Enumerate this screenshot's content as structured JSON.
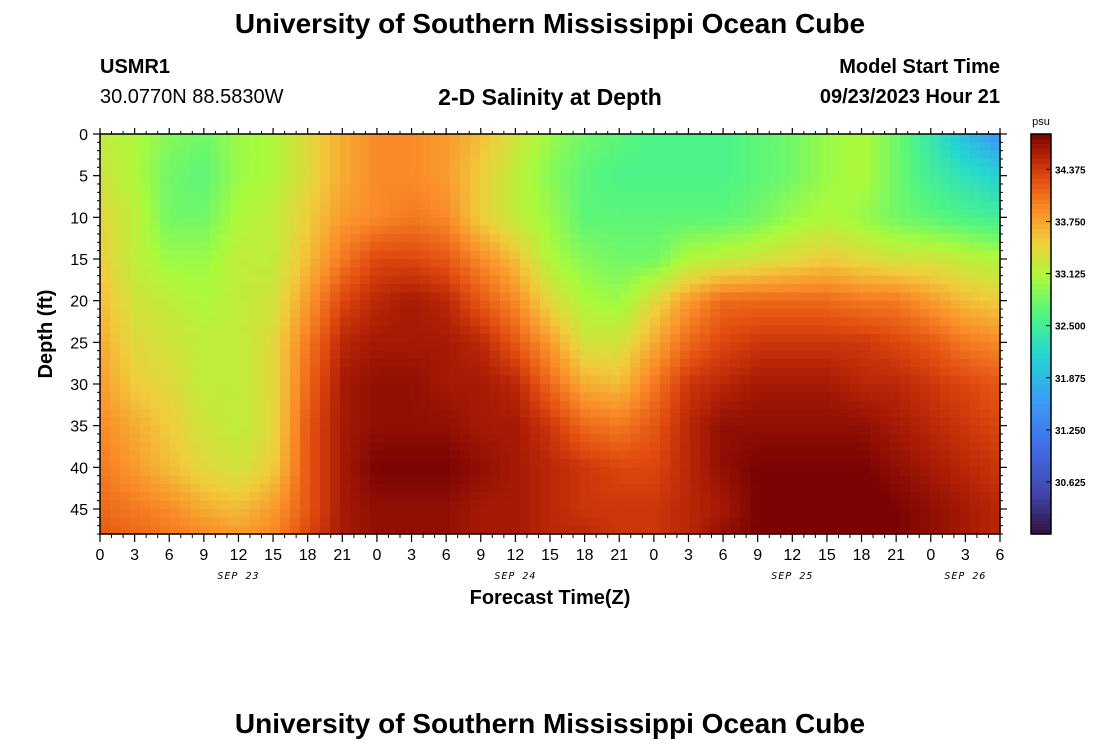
{
  "header": {
    "title": "University of Southern Mississippi Ocean Cube",
    "station_id": "USMR1",
    "coordinates": "30.0770N  88.5830W",
    "subtitle": "2-D Salinity at Depth",
    "model_start_label": "Model Start Time",
    "model_start_value": "09/23/2023 Hour 21"
  },
  "footer": {
    "title": "University of Southern Mississippi Ocean Cube"
  },
  "chart_data": {
    "type": "heatmap",
    "title": "2-D Salinity at Depth",
    "xlabel": "Forecast Time(Z)",
    "ylabel": "Depth (ft)",
    "x_hours_range": [
      0,
      78
    ],
    "x_tick_labels": [
      "0",
      "3",
      "6",
      "9",
      "12",
      "15",
      "18",
      "21",
      "0",
      "3",
      "6",
      "9",
      "12",
      "15",
      "18",
      "21",
      "0",
      "3",
      "6",
      "9",
      "12",
      "15",
      "18",
      "21",
      "0",
      "3",
      "6"
    ],
    "date_labels": [
      {
        "label": "SEP 23",
        "hour": 12
      },
      {
        "label": "SEP 24",
        "hour": 36
      },
      {
        "label": "SEP 25",
        "hour": 60
      },
      {
        "label": "SEP 26",
        "hour": 75
      }
    ],
    "y_range": [
      0,
      48
    ],
    "y_ticks": [
      0,
      5,
      10,
      15,
      20,
      25,
      30,
      35,
      40,
      45
    ],
    "colorbar": {
      "unit": "psu",
      "min": 30.0,
      "max": 34.8,
      "ticks": [
        "34.375",
        "33.750",
        "33.125",
        "32.500",
        "31.875",
        "31.250",
        "30.625"
      ]
    },
    "salinity_grid": {
      "description": "Approximate salinity (psu) sampled every 3 forecast hours (columns, hour 0..78) at depths 0,5,...,45,48 ft (rows).",
      "depths_ft": [
        0,
        5,
        10,
        15,
        20,
        25,
        30,
        35,
        40,
        45,
        48
      ],
      "rows": [
        [
          33.2,
          33.1,
          32.9,
          32.8,
          33.0,
          33.1,
          33.4,
          33.7,
          33.9,
          33.9,
          33.8,
          33.6,
          33.3,
          33.0,
          32.8,
          32.7,
          32.6,
          32.6,
          32.6,
          32.7,
          32.8,
          33.0,
          33.1,
          32.8,
          32.4,
          31.9,
          31.5
        ],
        [
          33.3,
          33.1,
          32.8,
          32.7,
          33.0,
          33.1,
          33.4,
          33.7,
          33.9,
          33.9,
          33.8,
          33.5,
          33.2,
          32.9,
          32.7,
          32.6,
          32.6,
          32.6,
          32.6,
          32.7,
          32.8,
          33.0,
          33.1,
          32.8,
          32.5,
          32.3,
          32.1
        ],
        [
          33.4,
          33.2,
          32.8,
          32.8,
          33.1,
          33.2,
          33.5,
          33.8,
          33.9,
          34.0,
          33.9,
          33.5,
          33.2,
          33.0,
          32.7,
          32.7,
          32.7,
          32.7,
          32.7,
          32.8,
          33.0,
          33.1,
          33.0,
          32.8,
          32.7,
          32.6,
          32.5
        ],
        [
          33.5,
          33.2,
          33.0,
          33.0,
          33.2,
          33.2,
          33.6,
          34.0,
          34.3,
          34.3,
          34.2,
          33.9,
          33.6,
          33.1,
          32.9,
          32.8,
          32.8,
          33.1,
          33.2,
          33.3,
          33.4,
          33.5,
          33.4,
          33.3,
          33.3,
          33.2,
          33.1
        ],
        [
          33.6,
          33.3,
          33.2,
          33.1,
          33.2,
          33.3,
          33.8,
          34.3,
          34.5,
          34.6,
          34.5,
          34.2,
          33.9,
          33.4,
          33.1,
          33.0,
          33.4,
          33.8,
          34.1,
          34.1,
          34.1,
          34.1,
          34.0,
          34.0,
          33.8,
          33.6,
          33.5
        ],
        [
          33.7,
          33.4,
          33.3,
          33.2,
          33.2,
          33.4,
          34.0,
          34.5,
          34.6,
          34.6,
          34.6,
          34.5,
          34.2,
          33.8,
          33.3,
          33.3,
          33.7,
          34.1,
          34.3,
          34.4,
          34.4,
          34.4,
          34.4,
          34.3,
          34.2,
          34.0,
          33.9
        ],
        [
          33.8,
          33.5,
          33.4,
          33.2,
          33.2,
          33.4,
          34.1,
          34.6,
          34.7,
          34.7,
          34.6,
          34.6,
          34.5,
          34.1,
          33.7,
          33.6,
          34.0,
          34.4,
          34.5,
          34.6,
          34.6,
          34.6,
          34.5,
          34.5,
          34.4,
          34.3,
          34.2
        ],
        [
          33.9,
          33.7,
          33.5,
          33.3,
          33.2,
          33.4,
          34.2,
          34.6,
          34.7,
          34.7,
          34.7,
          34.6,
          34.6,
          34.4,
          34.1,
          34.0,
          34.2,
          34.5,
          34.7,
          34.7,
          34.7,
          34.7,
          34.7,
          34.6,
          34.5,
          34.4,
          34.3
        ],
        [
          34.0,
          33.8,
          33.6,
          33.4,
          33.3,
          33.5,
          34.2,
          34.6,
          34.8,
          34.8,
          34.8,
          34.7,
          34.6,
          34.5,
          34.4,
          34.3,
          34.3,
          34.5,
          34.7,
          34.8,
          34.8,
          34.8,
          34.8,
          34.7,
          34.6,
          34.5,
          34.4
        ],
        [
          34.1,
          34.0,
          33.9,
          33.7,
          33.6,
          33.8,
          34.2,
          34.6,
          34.7,
          34.7,
          34.7,
          34.6,
          34.6,
          34.5,
          34.4,
          34.4,
          34.4,
          34.5,
          34.6,
          34.8,
          34.9,
          34.9,
          34.9,
          34.8,
          34.7,
          34.6,
          34.5
        ],
        [
          34.2,
          34.1,
          34.0,
          33.9,
          33.8,
          33.9,
          34.3,
          34.6,
          34.7,
          34.7,
          34.7,
          34.6,
          34.6,
          34.5,
          34.5,
          34.4,
          34.4,
          34.5,
          34.7,
          34.8,
          34.9,
          34.9,
          34.9,
          34.8,
          34.7,
          34.6,
          34.5
        ]
      ]
    }
  }
}
